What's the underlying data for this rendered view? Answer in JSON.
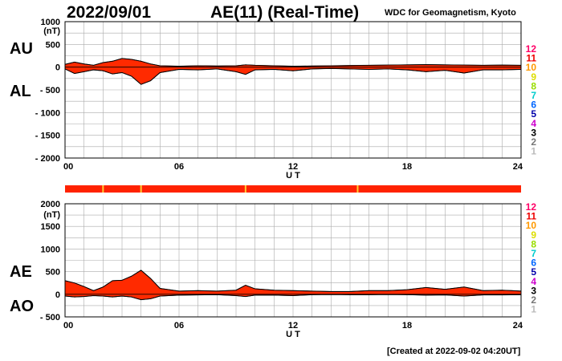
{
  "header": {
    "date": "2022/09/01",
    "title": "AE(11) (Real-Time)",
    "source": "WDC for Geomagnetism, Kyoto",
    "created": "[Created at 2022-09-02 04:20UT]"
  },
  "colors": {
    "fill": "#ff2a00",
    "stripe": "#ff2200",
    "stripe_mark": "#ffcc33",
    "grid": "#aaaaaa",
    "axis": "#000000"
  },
  "chart_data": [
    {
      "type": "area",
      "name": "AU/AL",
      "labels": {
        "upper": "AU",
        "lower": "AL"
      },
      "xlabel": "U T",
      "ylabel": "(nT)",
      "xlim": [
        0,
        24
      ],
      "ylim": [
        -2000,
        1000
      ],
      "xticks": [
        "00",
        "06",
        "12",
        "18",
        "24"
      ],
      "yticks": [
        "1000",
        "500",
        "0",
        "- 500",
        "- 1000",
        "- 1500",
        "- 2000"
      ],
      "series": [
        {
          "name": "AU",
          "x": [
            0,
            0.5,
            1,
            1.5,
            2,
            2.5,
            3,
            3.5,
            4,
            4.5,
            5,
            6,
            7,
            8,
            9,
            9.5,
            10,
            11,
            12,
            13,
            14,
            15,
            16,
            17,
            18,
            19,
            20,
            21,
            22,
            23,
            24
          ],
          "values": [
            60,
            110,
            70,
            40,
            100,
            130,
            190,
            170,
            130,
            70,
            30,
            20,
            30,
            25,
            30,
            50,
            40,
            30,
            20,
            25,
            30,
            35,
            40,
            45,
            50,
            55,
            50,
            45,
            40,
            45,
            40
          ]
        },
        {
          "name": "AL",
          "x": [
            0,
            0.5,
            1,
            1.5,
            2,
            2.5,
            3,
            3.5,
            4,
            4.5,
            5,
            6,
            7,
            8,
            9,
            9.5,
            10,
            11,
            12,
            13,
            14,
            15,
            16,
            17,
            18,
            19,
            20,
            21,
            22,
            23,
            24
          ],
          "values": [
            -40,
            -140,
            -100,
            -60,
            -80,
            -150,
            -120,
            -200,
            -380,
            -300,
            -120,
            -50,
            -60,
            -40,
            -100,
            -160,
            -60,
            -50,
            -80,
            -40,
            -30,
            -40,
            -50,
            -40,
            -60,
            -100,
            -70,
            -130,
            -60,
            -60,
            -50
          ]
        }
      ]
    },
    {
      "type": "area",
      "name": "AE/AO",
      "labels": {
        "upper": "AE",
        "lower": "AO"
      },
      "xlabel": "U T",
      "ylabel": "(nT)",
      "xlim": [
        0,
        24
      ],
      "ylim": [
        -500,
        2000
      ],
      "xticks": [
        "00",
        "06",
        "12",
        "18",
        "24"
      ],
      "yticks": [
        "2000",
        "1500",
        "1000",
        "500",
        "0",
        "- 500"
      ],
      "series": [
        {
          "name": "AE",
          "x": [
            0,
            0.5,
            1,
            1.5,
            2,
            2.5,
            3,
            3.5,
            4,
            4.5,
            5,
            6,
            7,
            8,
            9,
            9.5,
            10,
            11,
            12,
            13,
            14,
            15,
            16,
            17,
            18,
            19,
            20,
            21,
            22,
            23,
            24
          ],
          "values": [
            300,
            250,
            170,
            80,
            160,
            300,
            310,
            400,
            530,
            350,
            130,
            70,
            80,
            70,
            90,
            200,
            120,
            90,
            80,
            70,
            60,
            60,
            80,
            80,
            100,
            150,
            110,
            160,
            80,
            90,
            70
          ]
        },
        {
          "name": "AO",
          "x": [
            0,
            0.5,
            1,
            1.5,
            2,
            2.5,
            3,
            3.5,
            4,
            4.5,
            5,
            6,
            7,
            8,
            9,
            9.5,
            10,
            11,
            12,
            13,
            14,
            15,
            16,
            17,
            18,
            19,
            20,
            21,
            22,
            23,
            24
          ],
          "values": [
            -40,
            -60,
            -50,
            -30,
            -40,
            -60,
            -40,
            -60,
            -120,
            -100,
            -40,
            -20,
            -15,
            -10,
            -30,
            -50,
            -20,
            -20,
            -30,
            -10,
            -5,
            -10,
            -10,
            -5,
            -10,
            -20,
            -15,
            -40,
            -15,
            -15,
            -10
          ]
        }
      ]
    }
  ],
  "stripe_marks_hours": [
    2.0,
    4.0,
    9.5,
    15.4
  ],
  "station_legend": [
    {
      "label": "12",
      "color": "#ff0066"
    },
    {
      "label": "11",
      "color": "#ee0000"
    },
    {
      "label": "10",
      "color": "#ff9900"
    },
    {
      "label": "9",
      "color": "#dddd00"
    },
    {
      "label": "8",
      "color": "#99dd00"
    },
    {
      "label": "7",
      "color": "#00cccc"
    },
    {
      "label": "6",
      "color": "#0066ff"
    },
    {
      "label": "5",
      "color": "#0000aa"
    },
    {
      "label": "4",
      "color": "#cc00cc"
    },
    {
      "label": "3",
      "color": "#000000"
    },
    {
      "label": "2",
      "color": "#777777"
    },
    {
      "label": "1",
      "color": "#bbbbbb"
    }
  ]
}
